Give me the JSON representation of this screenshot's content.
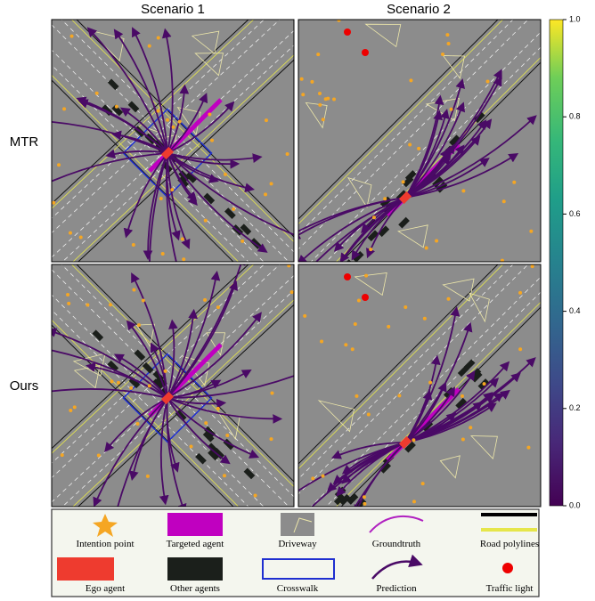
{
  "columns": [
    "Scenario 1",
    "Scenario 2"
  ],
  "rows": [
    "MTR",
    "Ours"
  ],
  "colorbar": {
    "ylim": [
      0,
      1
    ],
    "yticks": [
      {
        "value": 0,
        "label": "0.0"
      },
      {
        "value": 0.2,
        "label": "0.2"
      },
      {
        "value": 0.4,
        "label": "0.4"
      },
      {
        "value": 0.6,
        "label": "0.6"
      },
      {
        "value": 0.8,
        "label": "0.8"
      },
      {
        "value": 1,
        "label": "1.0"
      }
    ]
  },
  "legend": [
    "Intention point",
    "Targeted agent",
    "Driveway",
    "Groundtruth",
    "Road polylines",
    "Ego agent",
    "Other agents",
    "Crosswalk",
    "Prediction",
    "Traffic light"
  ]
}
